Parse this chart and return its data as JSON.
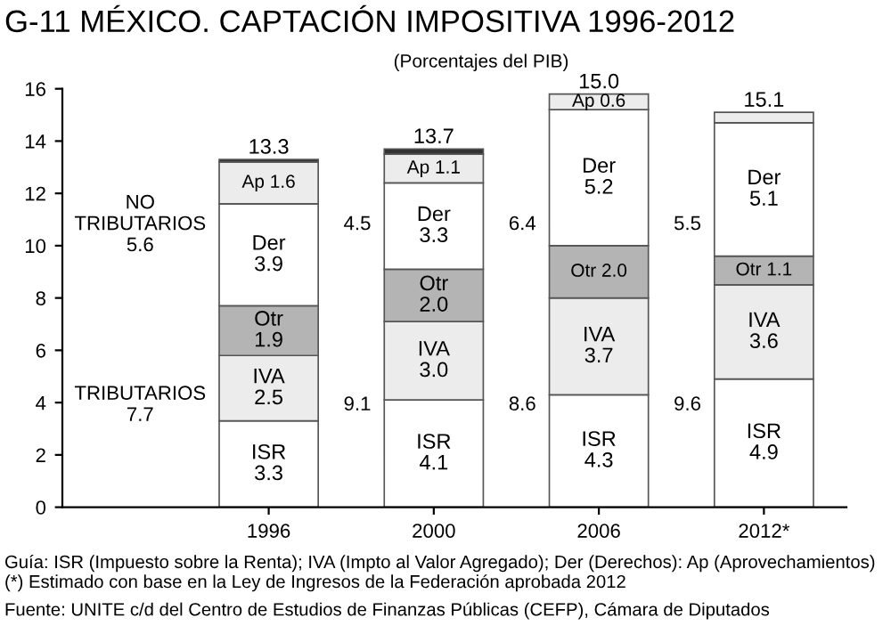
{
  "chart_data": {
    "type": "bar",
    "stacked": true,
    "title": "G-11 MÉXICO. CAPTACIÓN IMPOSITIVA 1996-2012",
    "subtitle": "(Porcentajes del PIB)",
    "categories": [
      "1996",
      "2000",
      "2006",
      "2012*"
    ],
    "series": [
      {
        "color": "#ffffff",
        "values": [
          3.3,
          4.1,
          4.3,
          4.9
        ],
        "value_labels": [
          "ISR\n3.3",
          "ISR\n4.1",
          "ISR\n4.3",
          "ISR\n4.9"
        ]
      },
      {
        "color": "#ececec",
        "values": [
          2.5,
          3.0,
          3.7,
          3.6
        ],
        "value_labels": [
          "IVA\n2.5",
          "IVA\n3.0",
          "IVA\n3.7",
          "IVA\n3.6"
        ]
      },
      {
        "color": "#b4b4b4",
        "values": [
          1.9,
          2.0,
          2.0,
          1.1
        ],
        "value_labels": [
          "Otr\n1.9",
          "Otr\n2.0",
          "Otr 2.0",
          "Otr 1.1"
        ]
      },
      {
        "color": "#ffffff",
        "values": [
          3.9,
          3.3,
          5.2,
          5.1
        ],
        "value_labels": [
          "Der\n3.9",
          "Der\n3.3",
          "Der\n5.2",
          "Der\n5.1"
        ]
      },
      {
        "color": "#ececec",
        "values": [
          1.6,
          1.1,
          0.6,
          null
        ],
        "value_labels": [
          "Ap 1.6",
          "Ap 1.1",
          "Ap 0.6",
          null
        ]
      },
      {
        "colors": [
          "#333333",
          "#333333",
          "#333333",
          "#ececec"
        ],
        "values": [
          0.1,
          0.2,
          null,
          0.4
        ],
        "value_labels": [
          null,
          null,
          null,
          null
        ]
      }
    ],
    "ylim": [
      0,
      16
    ],
    "yticks": [
      0,
      2,
      4,
      6,
      8,
      10,
      12,
      14,
      16
    ],
    "grid": false,
    "annotations": [
      "TRIBUTARIOS\n7.7",
      "NO\nTRIBUTARIOS\n5.6",
      "9.1",
      "4.5",
      "8.6",
      "6.4",
      "9.6",
      "5.5",
      "13.3",
      "13.7",
      "15.0",
      "15.1",
      "Guía: ISR (Impuesto sobre la Renta); IVA (Impto al Valor Agregado); Der (Derechos): Ap (Aprovechamientos)  (*) Estimado con base en la Ley de Ingresos de la Federación aprobada 2012",
      "Fuente: UNITE c/d del Centro de Estudios de Finanzas Públicas (CEFP), Cámara de Diputados"
    ]
  }
}
